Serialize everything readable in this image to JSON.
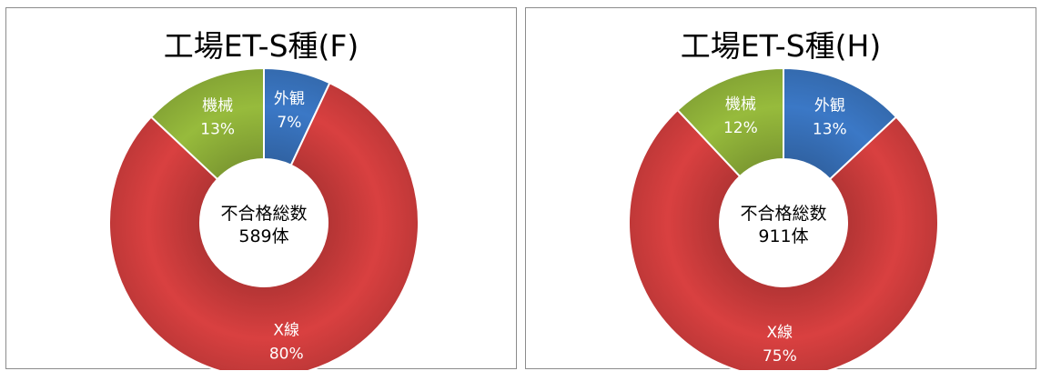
{
  "chart_data": [
    {
      "type": "pie",
      "title": "工場ET-S種(F)",
      "center_label": "不合格総数",
      "center_value": "589体",
      "slices": [
        {
          "label": "外観",
          "percent_label": "7%",
          "value": 7,
          "color": "#3b78c6"
        },
        {
          "label": "X線",
          "percent_label": "80%",
          "value": 80,
          "color": "#d94040"
        },
        {
          "label": "機械",
          "percent_label": "13%",
          "value": 13,
          "color": "#97bb3c"
        }
      ]
    },
    {
      "type": "pie",
      "title": "工場ET-S種(H)",
      "center_label": "不合格総数",
      "center_value": "911体",
      "slices": [
        {
          "label": "外観",
          "percent_label": "13%",
          "value": 13,
          "color": "#3b78c6"
        },
        {
          "label": "X線",
          "percent_label": "75%",
          "value": 75,
          "color": "#d94040"
        },
        {
          "label": "機械",
          "percent_label": "12%",
          "value": 12,
          "color": "#97bb3c"
        }
      ]
    }
  ]
}
